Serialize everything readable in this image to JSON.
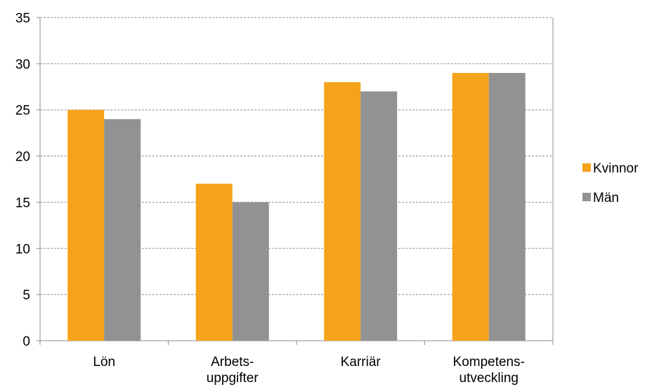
{
  "chart_data": {
    "type": "bar",
    "categories": [
      [
        "Lön"
      ],
      [
        "Arbets-",
        "uppgifter"
      ],
      [
        "Karriär"
      ],
      [
        "Kompetens-",
        "utveckling"
      ]
    ],
    "series": [
      {
        "name": "Kvinnor",
        "color": "#F5A31A",
        "values": [
          25,
          17,
          28,
          29
        ]
      },
      {
        "name": "Män",
        "color": "#929292",
        "values": [
          24,
          15,
          27,
          29
        ]
      }
    ],
    "ylim": [
      0,
      35
    ],
    "yticks": [
      0,
      5,
      10,
      15,
      20,
      25,
      30,
      35
    ],
    "grid": true,
    "legend_position": "right"
  }
}
